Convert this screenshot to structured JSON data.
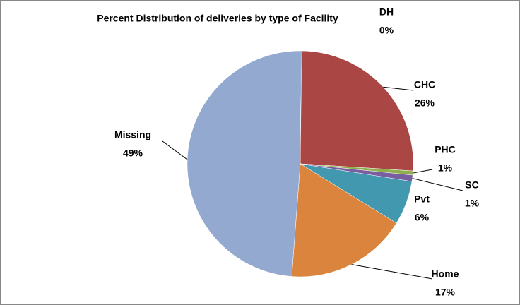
{
  "chart_data": {
    "type": "pie",
    "title": "Percent Distribution of deliveries by type of Facility",
    "categories": [
      "DH",
      "CHC",
      "PHC",
      "SC",
      "Pvt",
      "Home",
      "Missing"
    ],
    "values": [
      0.2,
      25.8,
      0.6,
      0.9,
      6.3,
      17.4,
      48.8
    ],
    "value_labels": [
      "0%",
      "26%",
      "1%",
      "1%",
      "6%",
      "17%",
      "49%"
    ],
    "colors": [
      "#4f81bd",
      "#aa4644",
      "#8fb04c",
      "#7a5fa0",
      "#4198af",
      "#db843d",
      "#93a9cf"
    ]
  }
}
